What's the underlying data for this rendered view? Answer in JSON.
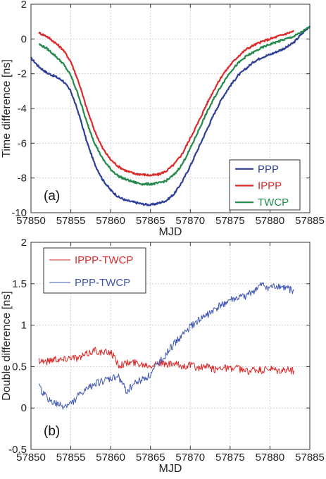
{
  "chart_data": [
    {
      "type": "line",
      "panel_label": "(a)",
      "xlabel": "MJD",
      "ylabel": "Time difference [ns]",
      "xlim": [
        57850,
        57885
      ],
      "ylim": [
        -10,
        2
      ],
      "xticks": [
        57850,
        57855,
        57860,
        57865,
        57870,
        57875,
        57880,
        57885
      ],
      "yticks": [
        -10,
        -8,
        -6,
        -4,
        -2,
        0,
        2
      ],
      "grid": true,
      "legend_position": "bottom-right",
      "series": [
        {
          "name": "PPP",
          "color": "#2e3f9a",
          "x": [
            57850,
            57851,
            57852,
            57853,
            57854,
            57855,
            57856,
            57857,
            57858,
            57859,
            57860,
            57861,
            57862,
            57863,
            57864,
            57865,
            57866,
            57867,
            57868,
            57869,
            57870,
            57871,
            57872,
            57873,
            57874,
            57875,
            57876,
            57877,
            57878,
            57879,
            57880,
            57881,
            57882,
            57883,
            57884,
            57885
          ],
          "values": [
            -1.1,
            -1.6,
            -1.95,
            -2.15,
            -2.4,
            -3.0,
            -4.3,
            -5.9,
            -7.2,
            -8.1,
            -8.7,
            -9.1,
            -9.3,
            -9.4,
            -9.5,
            -9.55,
            -9.45,
            -9.3,
            -8.9,
            -8.2,
            -7.3,
            -6.3,
            -5.3,
            -4.3,
            -3.4,
            -2.7,
            -2.1,
            -1.7,
            -1.3,
            -1.05,
            -0.9,
            -0.7,
            -0.5,
            -0.2,
            0.3,
            0.75
          ]
        },
        {
          "name": "IPPP",
          "color": "#d92b2b",
          "x": [
            57851,
            57852,
            57853,
            57854,
            57855,
            57856,
            57857,
            57858,
            57859,
            57860,
            57861,
            57862,
            57863,
            57864,
            57865,
            57866,
            57867,
            57868,
            57869,
            57870,
            57871,
            57872,
            57873,
            57874,
            57875,
            57876,
            57877,
            57878,
            57879,
            57880,
            57881,
            57882,
            57883
          ],
          "values": [
            0.35,
            0.15,
            -0.2,
            -0.6,
            -1.3,
            -2.5,
            -4.0,
            -5.3,
            -6.3,
            -6.95,
            -7.35,
            -7.6,
            -7.75,
            -7.8,
            -7.85,
            -7.8,
            -7.6,
            -7.2,
            -6.6,
            -5.7,
            -4.8,
            -3.8,
            -2.9,
            -2.1,
            -1.5,
            -1.0,
            -0.6,
            -0.35,
            -0.15,
            0.0,
            0.15,
            0.3,
            0.45
          ]
        },
        {
          "name": "TWCP",
          "color": "#238a4a",
          "x": [
            57851,
            57852,
            57853,
            57854,
            57855,
            57856,
            57857,
            57858,
            57859,
            57860,
            57861,
            57862,
            57863,
            57864,
            57865,
            57866,
            57867,
            57868,
            57869,
            57870,
            57871,
            57872,
            57873,
            57874,
            57875,
            57876,
            57877,
            57878,
            57879,
            57880,
            57881,
            57882,
            57883,
            57884,
            57885
          ],
          "values": [
            -0.3,
            -0.55,
            -0.95,
            -1.4,
            -2.1,
            -3.3,
            -4.8,
            -6.0,
            -6.9,
            -7.5,
            -7.9,
            -8.1,
            -8.25,
            -8.35,
            -8.35,
            -8.3,
            -8.15,
            -7.8,
            -7.2,
            -6.3,
            -5.3,
            -4.3,
            -3.4,
            -2.6,
            -1.9,
            -1.4,
            -1.0,
            -0.75,
            -0.5,
            -0.3,
            -0.15,
            0.0,
            0.15,
            0.4,
            0.7
          ]
        }
      ]
    },
    {
      "type": "line",
      "panel_label": "(b)",
      "xlabel": "MJD",
      "ylabel": "Double difference [ns]",
      "xlim": [
        57850,
        57885
      ],
      "ylim": [
        -0.5,
        2
      ],
      "xticks": [
        57850,
        57855,
        57860,
        57865,
        57870,
        57875,
        57880,
        57885
      ],
      "yticks": [
        -0.5,
        0,
        0.5,
        1,
        1.5,
        2
      ],
      "grid": true,
      "legend_position": "top-left",
      "series": [
        {
          "name": "IPPP-TWCP",
          "color": "#d92b2b",
          "x": [
            57851,
            57852,
            57853,
            57854,
            57855,
            57856,
            57857,
            57858,
            57859,
            57860,
            57861,
            57862,
            57863,
            57864,
            57865,
            57866,
            57867,
            57868,
            57869,
            57870,
            57871,
            57872,
            57873,
            57874,
            57875,
            57876,
            57877,
            57878,
            57879,
            57880,
            57881,
            57882,
            57883
          ],
          "values": [
            0.58,
            0.56,
            0.6,
            0.58,
            0.62,
            0.6,
            0.65,
            0.7,
            0.66,
            0.68,
            0.52,
            0.54,
            0.55,
            0.53,
            0.52,
            0.55,
            0.52,
            0.53,
            0.5,
            0.52,
            0.48,
            0.5,
            0.46,
            0.5,
            0.47,
            0.48,
            0.44,
            0.46,
            0.45,
            0.47,
            0.44,
            0.46,
            0.45
          ]
        },
        {
          "name": "PPP-TWCP",
          "color": "#3f57b0",
          "x": [
            57851,
            57852,
            57853,
            57854,
            57855,
            57856,
            57857,
            57858,
            57859,
            57860,
            57861,
            57862,
            57863,
            57864,
            57865,
            57866,
            57867,
            57868,
            57869,
            57870,
            57871,
            57872,
            57873,
            57874,
            57875,
            57876,
            57877,
            57878,
            57879,
            57880,
            57881,
            57882,
            57883
          ],
          "values": [
            0.25,
            0.12,
            0.05,
            0.02,
            0.05,
            0.15,
            0.22,
            0.3,
            0.32,
            0.35,
            0.38,
            0.2,
            0.3,
            0.35,
            0.4,
            0.55,
            0.65,
            0.78,
            0.88,
            0.98,
            1.05,
            1.12,
            1.18,
            1.25,
            1.3,
            1.32,
            1.35,
            1.42,
            1.48,
            1.45,
            1.47,
            1.44,
            1.42
          ]
        }
      ]
    }
  ]
}
